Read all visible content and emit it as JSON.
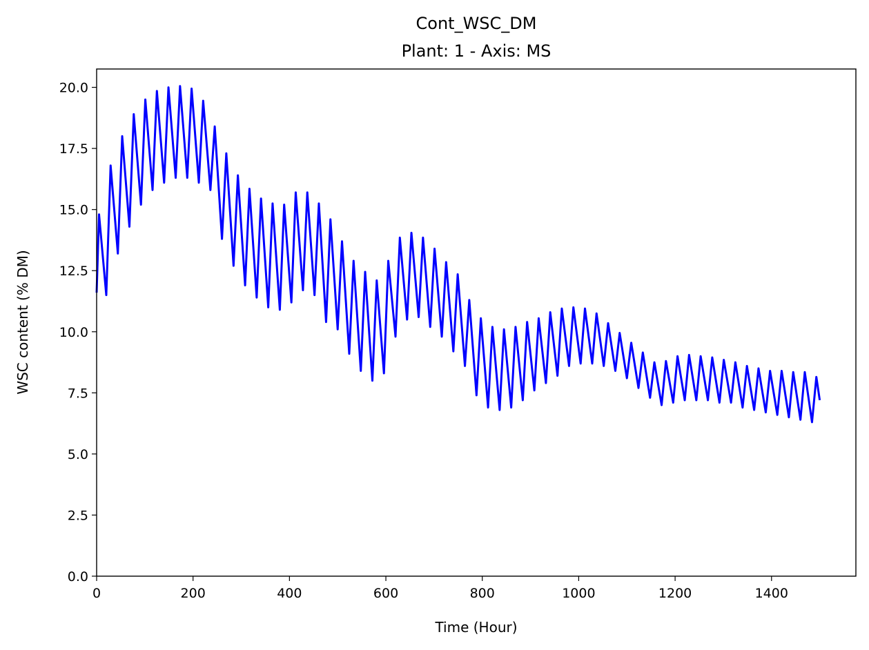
{
  "chart_data": {
    "type": "line",
    "title": "Cont_WSC_DM",
    "subtitle": "Plant: 1 - Axis: MS",
    "xlabel": "Time (Hour)",
    "ylabel": "WSC content (% DM)",
    "xlim": [
      0,
      1575
    ],
    "ylim": [
      0,
      20.75
    ],
    "xticks": [
      0,
      200,
      400,
      600,
      800,
      1000,
      1200,
      1400
    ],
    "xtick_labels": [
      "0",
      "200",
      "400",
      "600",
      "800",
      "1000",
      "1200",
      "1400"
    ],
    "yticks": [
      0,
      2.5,
      5,
      7.5,
      10,
      12.5,
      15,
      17.5,
      20
    ],
    "ytick_labels": [
      "0.0",
      "2.5",
      "5.0",
      "7.5",
      "10.0",
      "12.5",
      "15.0",
      "17.5",
      "20.0"
    ],
    "grid": false,
    "line_color": "#0000ff",
    "series": [
      {
        "values_description_free": true,
        "x": [
          0,
          5,
          20,
          29,
          44,
          53,
          68,
          77,
          92,
          101,
          116,
          125,
          140,
          149,
          164,
          173,
          188,
          197,
          212,
          221,
          236,
          245,
          260,
          269,
          284,
          293,
          308,
          317,
          332,
          341,
          356,
          365,
          380,
          389,
          404,
          413,
          428,
          437,
          452,
          461,
          476,
          485,
          500,
          509,
          524,
          533,
          548,
          557,
          572,
          581,
          596,
          605,
          620,
          629,
          644,
          653,
          668,
          677,
          692,
          701,
          716,
          725,
          740,
          749,
          764,
          773,
          788,
          797,
          812,
          821,
          836,
          845,
          860,
          869,
          884,
          893,
          908,
          917,
          932,
          941,
          956,
          965,
          980,
          989,
          1004,
          1013,
          1028,
          1037,
          1052,
          1061,
          1076,
          1085,
          1100,
          1109,
          1124,
          1133,
          1148,
          1157,
          1172,
          1181,
          1196,
          1205,
          1220,
          1229,
          1244,
          1253,
          1268,
          1277,
          1292,
          1301,
          1316,
          1325,
          1340,
          1349,
          1364,
          1373,
          1388,
          1397,
          1412,
          1421,
          1436,
          1445,
          1460,
          1469,
          1484,
          1493,
          1500
        ],
        "y": [
          11.6,
          14.8,
          11.5,
          16.8,
          13.2,
          18.0,
          14.3,
          18.9,
          15.2,
          19.5,
          15.8,
          19.85,
          16.1,
          20.0,
          16.3,
          20.05,
          16.3,
          19.95,
          16.1,
          19.45,
          15.8,
          18.4,
          13.8,
          17.3,
          12.7,
          16.4,
          11.9,
          15.85,
          11.4,
          15.45,
          11.0,
          15.25,
          10.9,
          15.2,
          11.2,
          15.7,
          11.7,
          15.7,
          11.5,
          15.25,
          10.4,
          14.6,
          10.1,
          13.7,
          9.1,
          12.9,
          8.4,
          12.45,
          8.0,
          12.1,
          8.3,
          12.9,
          9.8,
          13.85,
          10.5,
          14.05,
          10.6,
          13.85,
          10.2,
          13.4,
          9.8,
          12.85,
          9.2,
          12.35,
          8.6,
          11.3,
          7.4,
          10.55,
          6.9,
          10.2,
          6.8,
          10.1,
          6.9,
          10.2,
          7.2,
          10.4,
          7.6,
          10.55,
          7.9,
          10.8,
          8.2,
          10.95,
          8.6,
          11.0,
          8.7,
          10.95,
          8.7,
          10.75,
          8.6,
          10.35,
          8.4,
          9.95,
          8.1,
          9.55,
          7.7,
          9.15,
          7.3,
          8.75,
          7.0,
          8.8,
          7.1,
          9.0,
          7.2,
          9.05,
          7.2,
          9.0,
          7.2,
          8.95,
          7.1,
          8.85,
          7.1,
          8.75,
          6.9,
          8.6,
          6.8,
          8.5,
          6.7,
          8.4,
          6.6,
          8.4,
          6.5,
          8.35,
          6.4,
          8.35,
          6.3,
          8.15,
          7.2
        ]
      }
    ]
  }
}
